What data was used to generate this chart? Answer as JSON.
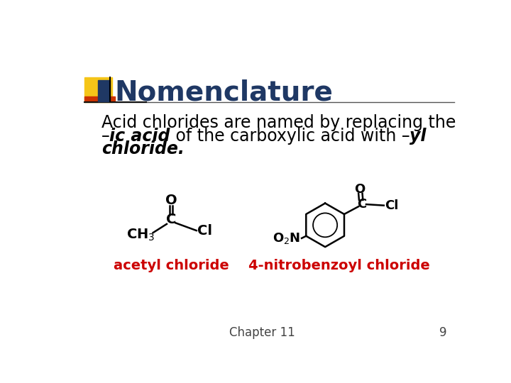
{
  "background_color": "#ffffff",
  "title": "Nomenclature",
  "title_color": "#1F3864",
  "title_fontsize": 28,
  "body_fontsize": 17,
  "label_acetyl": "acetyl chloride",
  "label_nitro": "4-nitrobenzoyl chloride",
  "label_color": "#cc0000",
  "label_fontsize": 14,
  "footer_text": "Chapter 11",
  "footer_number": "9",
  "footer_fontsize": 12,
  "accent_yellow": "#F5C518",
  "accent_red": "#cc3300",
  "accent_blue": "#1F3864",
  "line_color": "#333333"
}
